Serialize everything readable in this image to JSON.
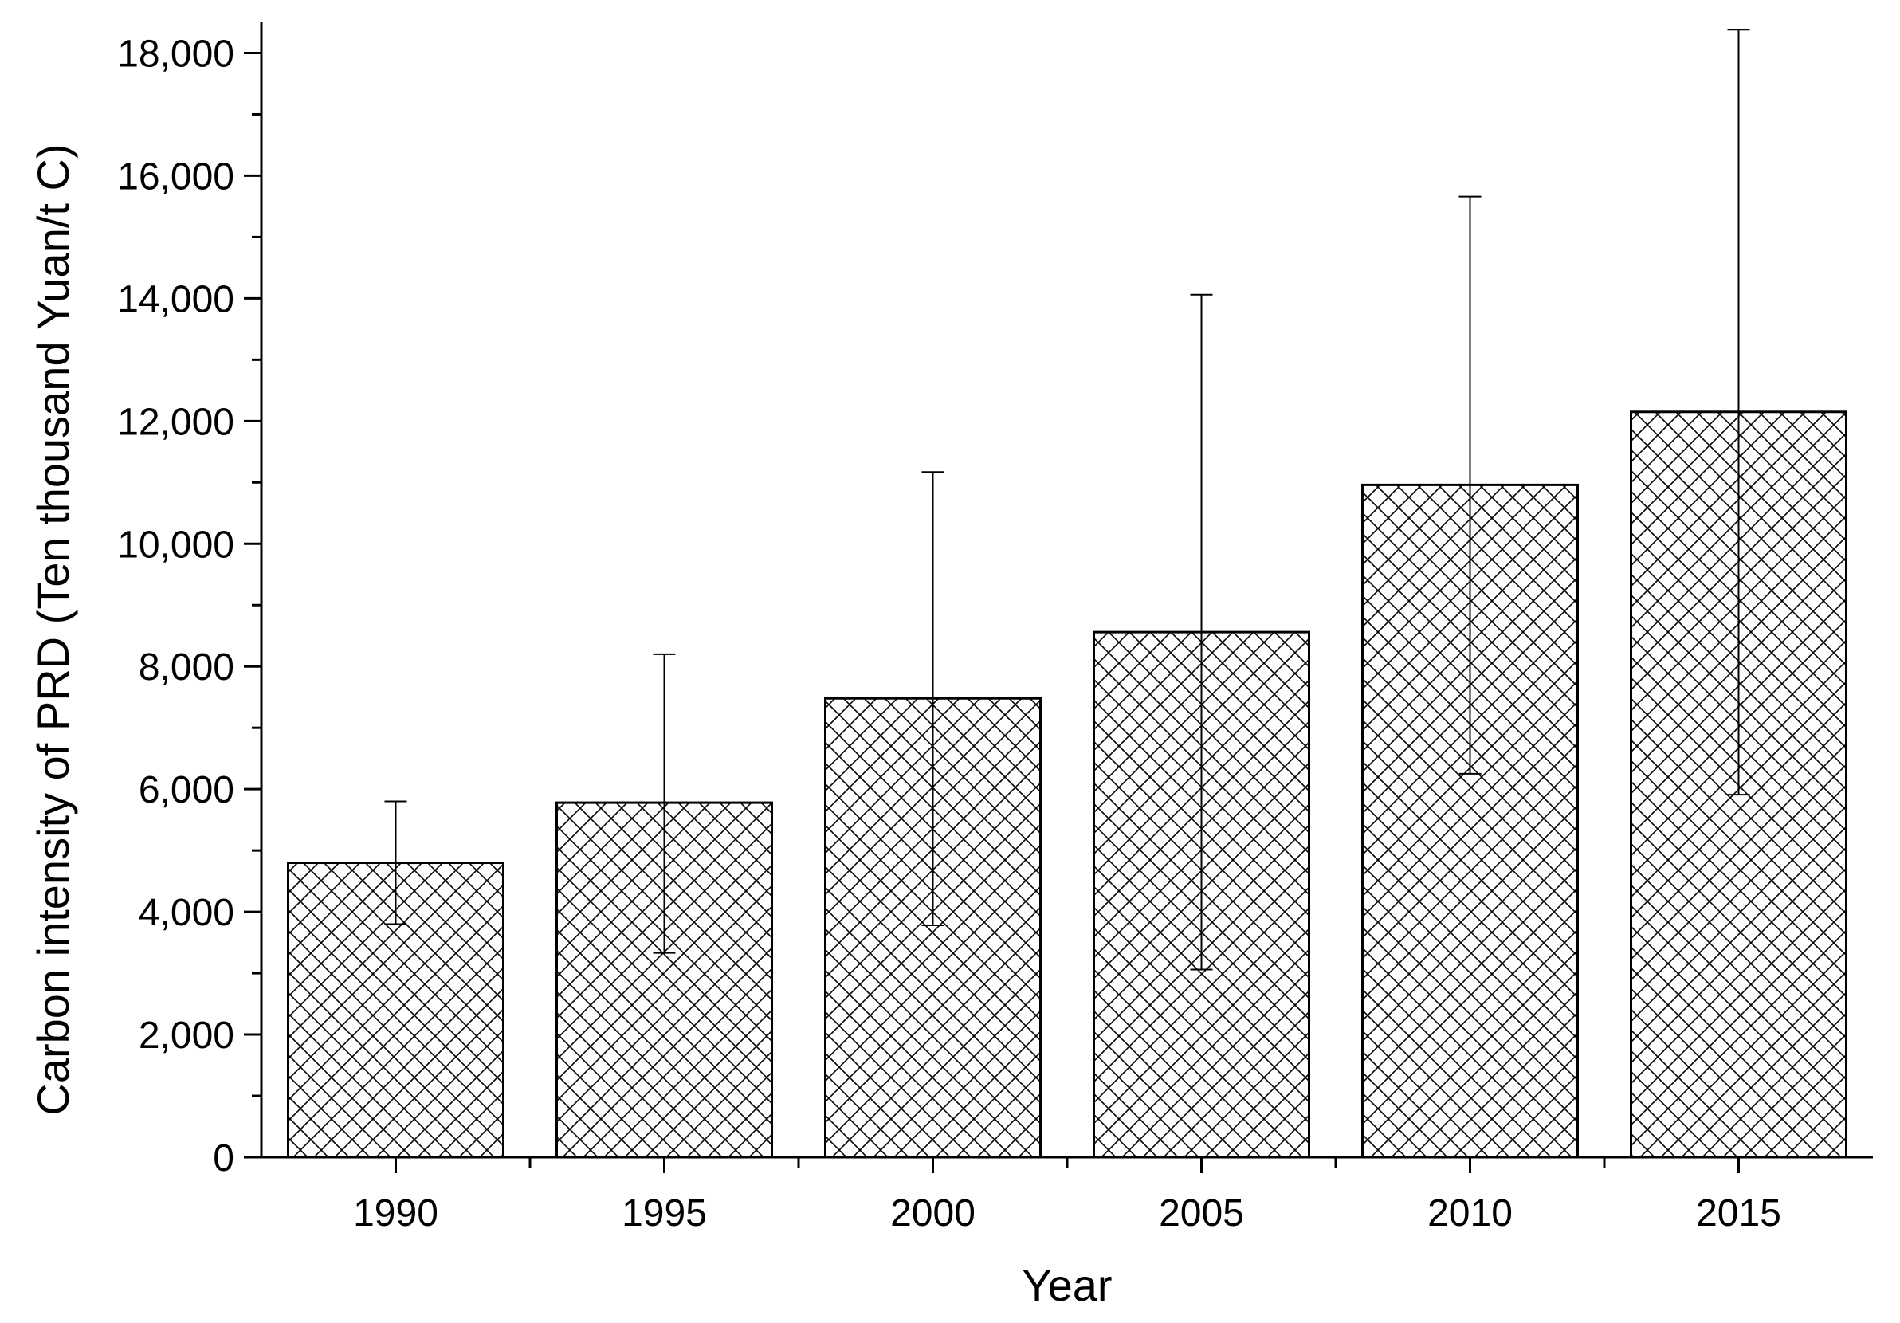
{
  "chart_data": {
    "type": "bar",
    "title": "",
    "xlabel": "Year",
    "ylabel": "Carbon intensity of PRD (Ten thousand Yuan/t C)",
    "categories": [
      "1990",
      "1995",
      "2000",
      "2005",
      "2010",
      "2015"
    ],
    "values": [
      4800,
      5780,
      7480,
      8560,
      10960,
      12150
    ],
    "error_upper": [
      5800,
      8200,
      11170,
      14060,
      15660,
      18380
    ],
    "error_lower": [
      3800,
      3330,
      3780,
      3060,
      6250,
      5910
    ],
    "ylim": [
      0,
      18500
    ],
    "yticks": [
      0,
      2000,
      4000,
      6000,
      8000,
      10000,
      12000,
      14000,
      16000,
      18000
    ],
    "ytick_labels": [
      "0",
      "2,000",
      "4,000",
      "6,000",
      "8,000",
      "10,000",
      "12,000",
      "14,000",
      "16,000",
      "18,000"
    ],
    "bar_fill": "crosshatch",
    "bar_stroke": "#000000",
    "grid": false,
    "legend": "none"
  }
}
